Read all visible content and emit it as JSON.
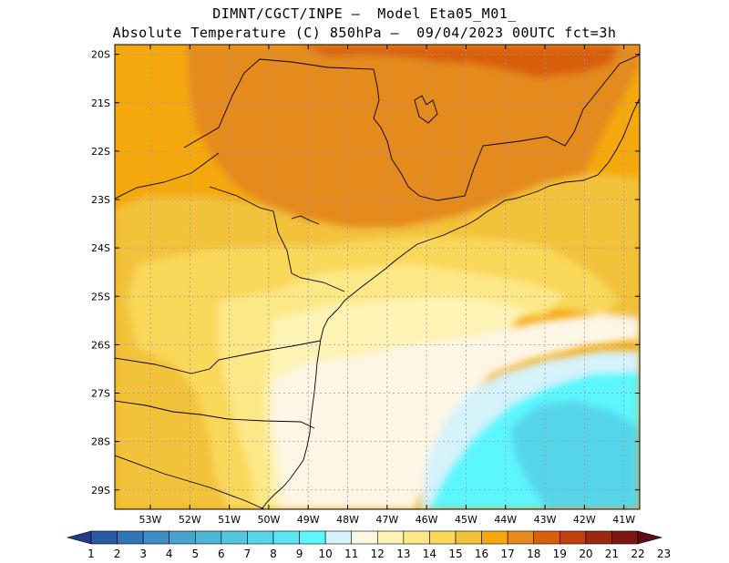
{
  "header": {
    "line1": "DIMNT/CGCT/INPE –  Model Eta05_M01_",
    "line2": "Absolute Temperature (C) 850hPa –  09/04/2023 00UTC fct=3h"
  },
  "map": {
    "lon_range": [
      -53.9,
      -40.6
    ],
    "lat_range": [
      -29.4,
      -19.8
    ],
    "lat_ticks": [
      "20S",
      "21S",
      "22S",
      "23S",
      "24S",
      "25S",
      "26S",
      "27S",
      "28S",
      "29S"
    ],
    "lon_ticks": [
      "53W",
      "52W",
      "51W",
      "50W",
      "49W",
      "48W",
      "47W",
      "46W",
      "45W",
      "44W",
      "43W",
      "42W",
      "41W"
    ],
    "temperature_regions": [
      {
        "label": "16-17",
        "color": "#f5a80e"
      },
      {
        "label": "17-18",
        "color": "#e58a1e"
      },
      {
        "label": "15-16",
        "color": "#f2c23a"
      },
      {
        "label": "14-15",
        "color": "#fad85a"
      },
      {
        "label": "13-14",
        "color": "#fde887"
      },
      {
        "label": "12-13",
        "color": "#fdf3b4"
      },
      {
        "label": "11-12",
        "color": "#fdf6e4"
      },
      {
        "label": "10-11",
        "color": "#d6f2fb"
      },
      {
        "label": "9-10",
        "color": "#5cf6ff"
      },
      {
        "label": "8-9",
        "color": "#57d5ea"
      },
      {
        "label": "18-19",
        "color": "#d95e10"
      }
    ]
  },
  "colorbar": {
    "labels": [
      "1",
      "2",
      "3",
      "4",
      "5",
      "6",
      "7",
      "8",
      "9",
      "10",
      "11",
      "12",
      "13",
      "14",
      "15",
      "16",
      "17",
      "18",
      "19",
      "20",
      "21",
      "22",
      "23"
    ],
    "colors": [
      "#233b8c",
      "#2a5aa6",
      "#3274b6",
      "#3f8dc4",
      "#4aa3cf",
      "#4fb6d8",
      "#53c6e2",
      "#57d5ea",
      "#5ce4f4",
      "#5cf6ff",
      "#d6f2fb",
      "#fdf6e4",
      "#fdf3b4",
      "#fde887",
      "#fad85a",
      "#f2c23a",
      "#f5a80e",
      "#e58a1e",
      "#d95e10",
      "#c2400f",
      "#9e2710",
      "#7c1812",
      "#5d0b18"
    ]
  }
}
